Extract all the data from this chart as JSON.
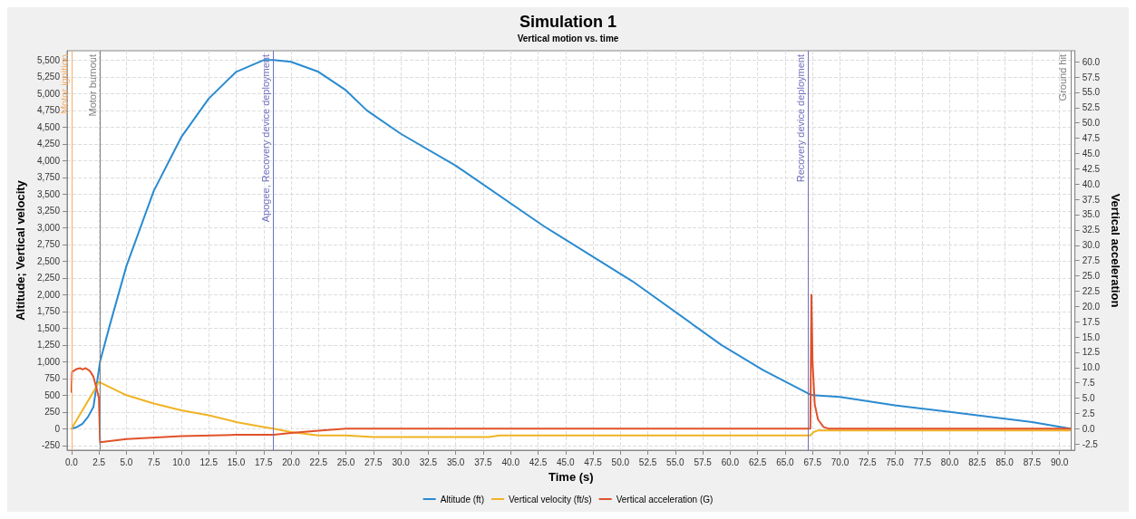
{
  "chart_data": {
    "type": "line",
    "title": "Simulation 1",
    "subtitle": "Vertical motion vs. time",
    "xlabel": "Time (s)",
    "ylabel": "Altitude; Vertical velocity",
    "y2label": "Vertical acceleration",
    "xlim": [
      -0.4,
      91.4
    ],
    "xticks": [
      {
        "value": 0,
        "label": "0.0"
      },
      2.5,
      {
        "value": 5,
        "label": "5.0"
      },
      7.5,
      {
        "value": 10,
        "label": "10.0"
      },
      12.5,
      {
        "value": 15,
        "label": "15.0"
      },
      17.5,
      {
        "value": 20,
        "label": "20.0"
      },
      22.5,
      {
        "value": 25,
        "label": "25.0"
      },
      27.5,
      {
        "value": 30,
        "label": "30.0"
      },
      32.5,
      {
        "value": 35,
        "label": "35.0"
      },
      37.5,
      {
        "value": 40,
        "label": "40.0"
      },
      42.5,
      {
        "value": 45,
        "label": "45.0"
      },
      47.5,
      {
        "value": 50,
        "label": "50.0"
      },
      52.5,
      {
        "value": 55,
        "label": "55.0"
      },
      57.5,
      {
        "value": 60,
        "label": "60.0"
      },
      62.5,
      {
        "value": 65,
        "label": "65.0"
      },
      67.5,
      {
        "value": 70,
        "label": "70.0"
      },
      72.5,
      {
        "value": 75,
        "label": "75.0"
      },
      77.5,
      {
        "value": 80,
        "label": "80.0"
      },
      82.5,
      {
        "value": 85,
        "label": "85.0"
      },
      87.5,
      {
        "value": 90,
        "label": "90.0"
      }
    ],
    "ylim": [
      -320,
      5640
    ],
    "yticks": [
      -250,
      0,
      250,
      500,
      750,
      {
        "value": 1000,
        "label": "1,000"
      },
      {
        "value": 1250,
        "label": "1,250"
      },
      {
        "value": 1500,
        "label": "1,500"
      },
      {
        "value": 1750,
        "label": "1,750"
      },
      {
        "value": 2000,
        "label": "2,000"
      },
      {
        "value": 2250,
        "label": "2,250"
      },
      {
        "value": 2500,
        "label": "2,500"
      },
      {
        "value": 2750,
        "label": "2,750"
      },
      {
        "value": 3000,
        "label": "3,000"
      },
      {
        "value": 3250,
        "label": "3,250"
      },
      {
        "value": 3500,
        "label": "3,500"
      },
      {
        "value": 3750,
        "label": "3,750"
      },
      {
        "value": 4000,
        "label": "4,000"
      },
      {
        "value": 4250,
        "label": "4,250"
      },
      {
        "value": 4500,
        "label": "4,500"
      },
      {
        "value": 4750,
        "label": "4,750"
      },
      {
        "value": 5000,
        "label": "5,000"
      },
      {
        "value": 5250,
        "label": "5,250"
      },
      {
        "value": 5500,
        "label": "5,500"
      }
    ],
    "y2lim": [
      -3.5,
      61.8
    ],
    "y2ticks": [
      -2.5,
      {
        "value": 0,
        "label": "0.0"
      },
      2.5,
      {
        "value": 5,
        "label": "5.0"
      },
      7.5,
      {
        "value": 10,
        "label": "10.0"
      },
      12.5,
      {
        "value": 15,
        "label": "15.0"
      },
      17.5,
      {
        "value": 20,
        "label": "20.0"
      },
      22.5,
      {
        "value": 25,
        "label": "25.0"
      },
      27.5,
      {
        "value": 30,
        "label": "30.0"
      },
      32.5,
      {
        "value": 35,
        "label": "35.0"
      },
      37.5,
      {
        "value": 40,
        "label": "40.0"
      },
      42.5,
      {
        "value": 45,
        "label": "45.0"
      },
      47.5,
      {
        "value": 50,
        "label": "50.0"
      },
      52.5,
      {
        "value": 55,
        "label": "55.0"
      },
      57.5,
      {
        "value": 60,
        "label": "60.0"
      }
    ],
    "grid": true,
    "legend": "bottom",
    "marker": "none",
    "line_style": "solid",
    "series": [
      {
        "name": "Altitude (ft)",
        "color": "#2a8bd0",
        "x": [
          0,
          0.5,
          1,
          1.5,
          2,
          2.6,
          3.5,
          5,
          7.5,
          10,
          12.5,
          15,
          17.5,
          18.4,
          20,
          22.5,
          25,
          26.9,
          30,
          35,
          43,
          51.1,
          59.2,
          63,
          67.1,
          67.5,
          70,
          75,
          80,
          85,
          87.5,
          91
        ],
        "values": [
          0,
          25,
          75,
          175,
          325,
          1000,
          1550,
          2425,
          3550,
          4350,
          4925,
          5325,
          5500,
          5500,
          5475,
          5325,
          5050,
          4750,
          4400,
          3925,
          3025,
          2200,
          1250,
          875,
          525,
          500,
          475,
          350,
          250,
          150,
          100,
          0
        ]
      },
      {
        "name": "Vertical velocity (ft/s)",
        "color": "#f0b323",
        "x": [
          0,
          1,
          2,
          2.5,
          5,
          7.5,
          10,
          12.5,
          15,
          17.5,
          18.4,
          20,
          22.5,
          25,
          27.5,
          38,
          39,
          67.3,
          67.6,
          68,
          69,
          91
        ],
        "values": [
          0,
          275,
          550,
          700,
          500,
          375,
          275,
          200,
          100,
          25,
          0,
          -50,
          -100,
          -100,
          -125,
          -125,
          -100,
          -100,
          -50,
          -25,
          -25,
          -25
        ]
      },
      {
        "name": "Vertical acceleration (G)",
        "color": "#e0522a",
        "axis": "y2",
        "x": [
          0,
          0.05,
          0.5,
          0.8,
          1,
          1.3,
          1.7,
          2,
          2.3,
          2.5,
          2.6,
          5,
          10,
          15,
          18.4,
          20,
          22.5,
          25,
          67.3,
          67.4,
          67.5,
          67.7,
          68,
          68.5,
          69,
          91
        ],
        "values": [
          6.0,
          9.3,
          9.8,
          9.9,
          9.7,
          9.9,
          9.4,
          8.5,
          6.5,
          5.0,
          -2.2,
          -1.7,
          -1.2,
          -1.0,
          -1.0,
          -0.7,
          -0.3,
          0,
          0,
          21.9,
          11,
          4,
          1.5,
          0.3,
          0,
          0
        ]
      }
    ],
    "ref_lines": [
      {
        "axis": "x",
        "value": 0.05,
        "label": "Motor ignition",
        "color": "#f5b06a"
      },
      {
        "axis": "x",
        "value": 2.6,
        "label": "Motor burnout",
        "color": "#808080"
      },
      {
        "axis": "x",
        "value": 18.4,
        "label": "Apogee, Recovery device deployment",
        "color": "#7070c0"
      },
      {
        "axis": "x",
        "value": 67.1,
        "label": "Recovery device deployment",
        "color": "#7070c0"
      },
      {
        "axis": "x",
        "value": 91.0,
        "label": "Ground hit",
        "color": "#808080"
      }
    ]
  }
}
